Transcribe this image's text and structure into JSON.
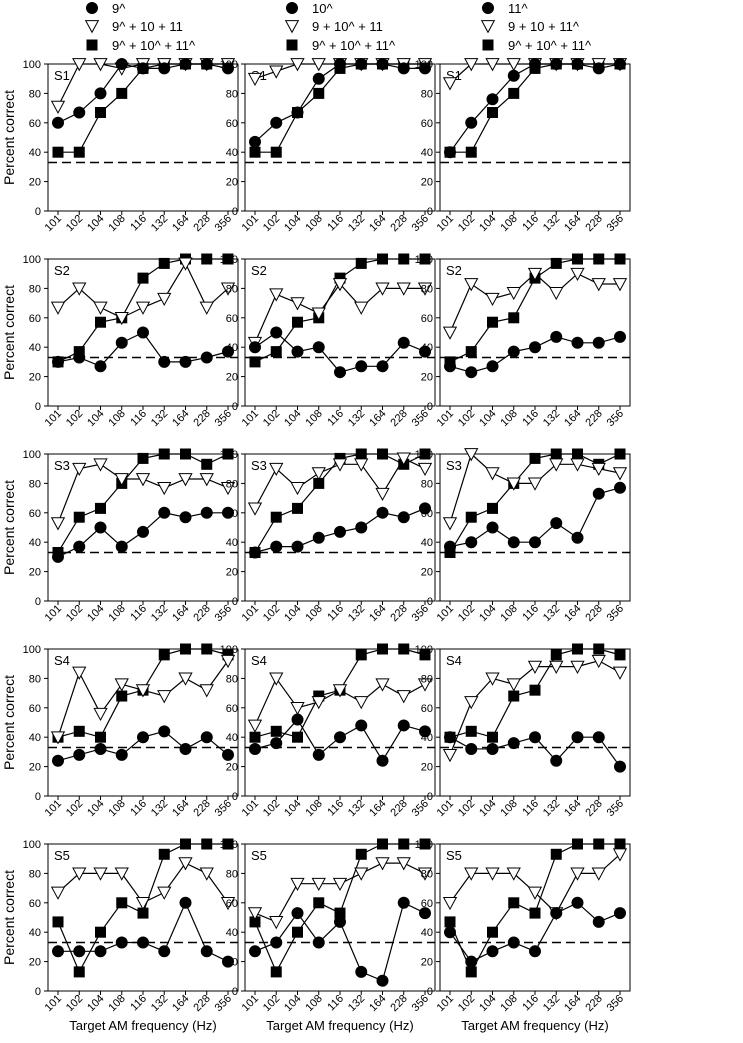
{
  "chart_data": {
    "type": "line",
    "categories": [
      "101",
      "102",
      "104",
      "108",
      "116",
      "132",
      "164",
      "228",
      "356"
    ],
    "xlabel": "Target AM frequency (Hz)",
    "ylabel": "Percent correct",
    "ylim": [
      0,
      100
    ],
    "yticks": [
      "0",
      "20",
      "40",
      "60",
      "80",
      "100"
    ],
    "chance_level": 33,
    "markers": {
      "single": "filled-circle",
      "triple": "open-down-triangle",
      "all": "filled-square"
    },
    "columns": [
      {
        "legend": [
          "9^",
          "9^ + 10 + 11",
          "9^ + 10^ + 11^"
        ]
      },
      {
        "legend": [
          "10^",
          "9 + 10^ + 11",
          "9^ + 10^ + 11^"
        ]
      },
      {
        "legend": [
          "11^",
          "9 + 10 + 11^",
          "9^ + 10^ + 11^"
        ]
      }
    ],
    "panels": [
      {
        "row": 0,
        "col": 0,
        "label": "S1",
        "single": [
          60,
          67,
          80,
          100,
          97,
          97,
          100,
          100,
          97
        ],
        "triple": [
          71,
          100,
          100,
          97,
          100,
          100,
          100,
          100,
          100
        ],
        "all": [
          40,
          40,
          67,
          80,
          97,
          100,
          100,
          100,
          100
        ]
      },
      {
        "row": 0,
        "col": 1,
        "label": "S1",
        "single": [
          47,
          60,
          67,
          90,
          100,
          100,
          100,
          97,
          97
        ],
        "triple": [
          90,
          95,
          100,
          100,
          100,
          100,
          100,
          100,
          100
        ],
        "all": [
          40,
          40,
          67,
          80,
          97,
          100,
          100,
          100,
          100
        ]
      },
      {
        "row": 0,
        "col": 2,
        "label": "S1",
        "single": [
          40,
          60,
          76,
          92,
          100,
          100,
          100,
          97,
          100
        ],
        "triple": [
          87,
          100,
          100,
          100,
          100,
          100,
          100,
          100,
          100
        ],
        "all": [
          40,
          40,
          67,
          80,
          97,
          100,
          100,
          100,
          100
        ]
      },
      {
        "row": 1,
        "col": 0,
        "label": "S2",
        "single": [
          30,
          33,
          27,
          43,
          50,
          30,
          30,
          33,
          37
        ],
        "triple": [
          67,
          80,
          67,
          60,
          67,
          73,
          97,
          67,
          80
        ],
        "all": [
          30,
          37,
          57,
          60,
          87,
          97,
          100,
          100,
          100
        ]
      },
      {
        "row": 1,
        "col": 1,
        "label": "S2",
        "single": [
          40,
          50,
          37,
          40,
          23,
          27,
          27,
          43,
          37
        ],
        "triple": [
          43,
          76,
          70,
          63,
          83,
          67,
          80,
          80,
          80
        ],
        "all": [
          30,
          37,
          57,
          60,
          87,
          97,
          100,
          100,
          100
        ]
      },
      {
        "row": 1,
        "col": 2,
        "label": "S2",
        "single": [
          27,
          23,
          27,
          37,
          40,
          47,
          43,
          43,
          47
        ],
        "triple": [
          50,
          83,
          73,
          77,
          90,
          77,
          90,
          83,
          83
        ],
        "all": [
          30,
          37,
          57,
          60,
          87,
          97,
          100,
          100,
          100
        ]
      },
      {
        "row": 2,
        "col": 0,
        "label": "S3",
        "single": [
          30,
          37,
          50,
          37,
          47,
          60,
          57,
          60,
          60
        ],
        "triple": [
          53,
          90,
          93,
          83,
          83,
          77,
          83,
          83,
          77
        ],
        "all": [
          33,
          57,
          63,
          80,
          97,
          100,
          100,
          93,
          100
        ],
        "cfill": "open"
      },
      {
        "row": 2,
        "col": 1,
        "label": "S3",
        "single": [
          33,
          37,
          37,
          43,
          47,
          50,
          60,
          57,
          63
        ],
        "triple": [
          63,
          90,
          77,
          87,
          93,
          93,
          73,
          97,
          90
        ],
        "all": [
          33,
          57,
          63,
          80,
          97,
          100,
          100,
          93,
          100
        ]
      },
      {
        "row": 2,
        "col": 2,
        "label": "S3",
        "single": [
          37,
          40,
          50,
          40,
          40,
          53,
          43,
          73,
          77
        ],
        "triple": [
          53,
          100,
          87,
          80,
          80,
          93,
          93,
          90,
          87
        ],
        "all": [
          33,
          57,
          63,
          80,
          97,
          100,
          100,
          93,
          100
        ]
      },
      {
        "row": 3,
        "col": 0,
        "label": "S4",
        "single": [
          24,
          28,
          32,
          28,
          40,
          44,
          32,
          40,
          28
        ],
        "triple": [
          40,
          84,
          56,
          76,
          72,
          68,
          80,
          72,
          92
        ],
        "all": [
          40,
          44,
          40,
          68,
          72,
          96,
          100,
          100,
          96
        ]
      },
      {
        "row": 3,
        "col": 1,
        "label": "S4",
        "single": [
          32,
          36,
          52,
          28,
          40,
          48,
          24,
          48,
          44
        ],
        "triple": [
          48,
          80,
          60,
          64,
          72,
          64,
          76,
          68,
          76
        ],
        "all": [
          40,
          44,
          40,
          68,
          72,
          96,
          100,
          100,
          96
        ]
      },
      {
        "row": 3,
        "col": 2,
        "label": "S4",
        "single": [
          40,
          32,
          32,
          36,
          40,
          24,
          40,
          40,
          20
        ],
        "triple": [
          28,
          64,
          80,
          76,
          88,
          88,
          88,
          92,
          84
        ],
        "all": [
          40,
          44,
          40,
          68,
          72,
          96,
          100,
          100,
          96
        ]
      },
      {
        "row": 4,
        "col": 0,
        "label": "S5",
        "single": [
          27,
          27,
          27,
          33,
          33,
          27,
          60,
          27,
          20
        ],
        "triple": [
          67,
          80,
          80,
          80,
          60,
          67,
          87,
          80,
          60
        ],
        "all": [
          47,
          13,
          40,
          60,
          53,
          93,
          100,
          100,
          100
        ]
      },
      {
        "row": 4,
        "col": 1,
        "label": "S5",
        "single": [
          27,
          33,
          53,
          33,
          47,
          13,
          7,
          60,
          53
        ],
        "triple": [
          53,
          47,
          73,
          73,
          73,
          80,
          87,
          87,
          80
        ],
        "all": [
          47,
          13,
          40,
          60,
          53,
          93,
          100,
          100,
          100
        ]
      },
      {
        "row": 4,
        "col": 2,
        "label": "S5",
        "single": [
          40,
          20,
          27,
          33,
          27,
          53,
          60,
          47,
          53
        ],
        "triple": [
          60,
          80,
          80,
          80,
          67,
          53,
          80,
          80,
          93
        ],
        "all": [
          47,
          13,
          40,
          60,
          53,
          93,
          100,
          100,
          100
        ]
      }
    ]
  }
}
